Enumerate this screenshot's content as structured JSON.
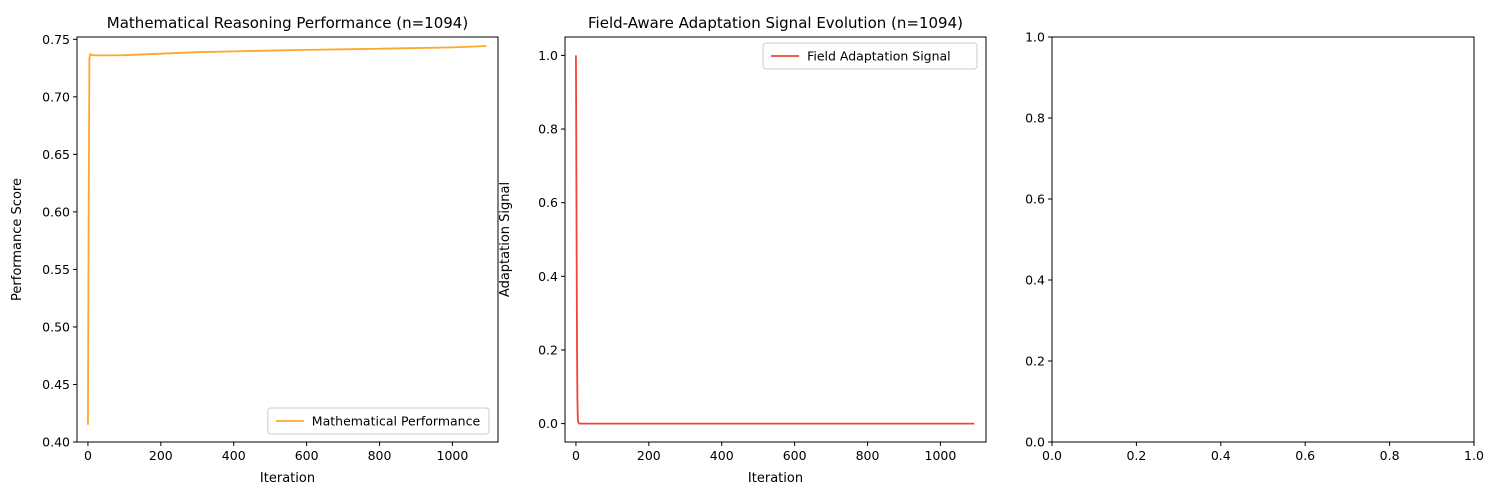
{
  "chart_data": [
    {
      "type": "line",
      "title": "Mathematical Reasoning Performance (n=1094)",
      "xlabel": "Iteration",
      "ylabel": "Performance Score",
      "xlim": [
        -30,
        1125
      ],
      "ylim": [
        0.4,
        0.752
      ],
      "xticks": [
        0,
        200,
        400,
        600,
        800,
        1000
      ],
      "yticks": [
        0.4,
        0.45,
        0.5,
        0.55,
        0.6,
        0.65,
        0.7,
        0.75
      ],
      "ytick_labels": [
        "0.40",
        "0.45",
        "0.50",
        "0.55",
        "0.60",
        "0.65",
        "0.70",
        "0.75"
      ],
      "legend_position": "lower-right",
      "series": [
        {
          "name": "Mathematical Performance",
          "color": "#ffa726",
          "x": [
            0,
            2,
            4,
            6,
            10,
            20,
            50,
            100,
            200,
            300,
            400,
            500,
            600,
            700,
            800,
            900,
            1000,
            1093
          ],
          "y": [
            0.415,
            0.6,
            0.733,
            0.737,
            0.7365,
            0.736,
            0.736,
            0.7362,
            0.7375,
            0.7388,
            0.7395,
            0.7402,
            0.7408,
            0.7413,
            0.7418,
            0.7424,
            0.743,
            0.7442
          ]
        }
      ]
    },
    {
      "type": "line",
      "title": "Field-Aware Adaptation Signal Evolution (n=1094)",
      "xlabel": "Iteration",
      "ylabel": "Adaptation Signal",
      "xlim": [
        -30,
        1125
      ],
      "ylim": [
        -0.05,
        1.05
      ],
      "xticks": [
        0,
        200,
        400,
        600,
        800,
        1000
      ],
      "yticks": [
        0.0,
        0.2,
        0.4,
        0.6,
        0.8,
        1.0
      ],
      "ytick_labels": [
        "0.0",
        "0.2",
        "0.4",
        "0.6",
        "0.8",
        "1.0"
      ],
      "legend_position": "upper-right",
      "series": [
        {
          "name": "Field Adaptation Signal",
          "color": "#f44336",
          "x": [
            0,
            1,
            2,
            3,
            4,
            5,
            6,
            8,
            10,
            50,
            200,
            500,
            800,
            1093
          ],
          "y": [
            1.0,
            0.72,
            0.45,
            0.2,
            0.07,
            0.02,
            0.005,
            0.001,
            0.0,
            0.0,
            0.0,
            0.0,
            0.0,
            0.0
          ]
        }
      ]
    },
    {
      "type": "line",
      "title": "",
      "xlabel": "",
      "ylabel": "",
      "xlim": [
        0,
        1
      ],
      "ylim": [
        0,
        1
      ],
      "xticks": [
        0.0,
        0.2,
        0.4,
        0.6,
        0.8,
        1.0
      ],
      "yticks": [
        0.0,
        0.2,
        0.4,
        0.6,
        0.8,
        1.0
      ],
      "xtick_labels": [
        "0.0",
        "0.2",
        "0.4",
        "0.6",
        "0.8",
        "1.0"
      ],
      "ytick_labels": [
        "0.0",
        "0.2",
        "0.4",
        "0.6",
        "0.8",
        "1.0"
      ],
      "series": []
    }
  ]
}
